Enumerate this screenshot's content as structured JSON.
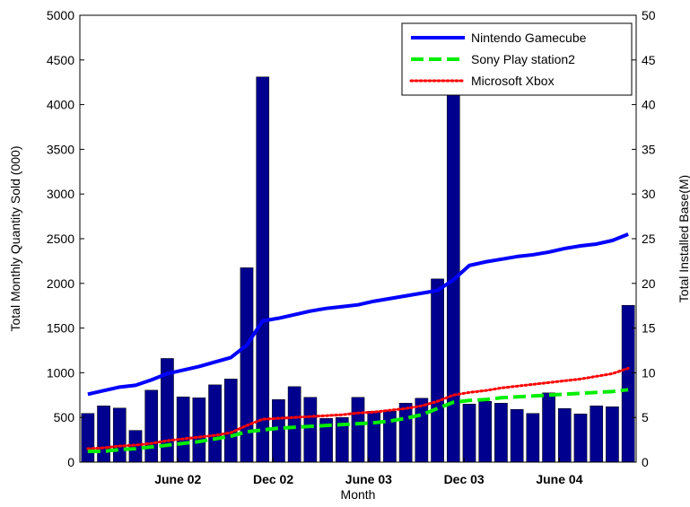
{
  "chart_data": {
    "type": "bar",
    "xlabel": "Month",
    "ylabel_left": "Total Monthly Quantity Sold (000)",
    "ylabel_right": "Total Installed Base(M)",
    "ylim_left": [
      0,
      5000
    ],
    "ylim_right": [
      0,
      50
    ],
    "yticks_left": [
      "0",
      "500",
      "1000",
      "1500",
      "2000",
      "2500",
      "3000",
      "3500",
      "4000",
      "4500",
      "5000"
    ],
    "yticks_right": [
      "0",
      "5",
      "10",
      "15",
      "20",
      "25",
      "30",
      "35",
      "40",
      "45",
      "50"
    ],
    "x_tick_labels": [
      {
        "month_index": 6,
        "label": "June 02"
      },
      {
        "month_index": 12,
        "label": "Dec  02"
      },
      {
        "month_index": 18,
        "label": "June 03"
      },
      {
        "month_index": 24,
        "label": "Dec  03"
      },
      {
        "month_index": 30,
        "label": "June 04"
      }
    ],
    "bar_color": "#00008f",
    "bars": [
      545,
      630,
      605,
      355,
      805,
      1160,
      730,
      720,
      865,
      930,
      2175,
      4310,
      700,
      845,
      725,
      490,
      500,
      725,
      570,
      570,
      660,
      715,
      2050,
      4150,
      650,
      680,
      660,
      590,
      545,
      775,
      600,
      540,
      630,
      620,
      1755
    ],
    "grid": false,
    "legend_position": "top-right",
    "series": [
      {
        "name": "Nintendo Gamecube",
        "color": "#0000ff",
        "style": "solid",
        "axis": "right",
        "values": [
          7.6,
          8.0,
          8.4,
          8.6,
          9.2,
          9.9,
          10.3,
          10.7,
          11.2,
          11.7,
          13.1,
          15.8,
          16.1,
          16.5,
          16.9,
          17.2,
          17.4,
          17.6,
          18.0,
          18.3,
          18.6,
          18.9,
          19.2,
          20.4,
          22.0,
          22.4,
          22.7,
          23.0,
          23.2,
          23.5,
          23.9,
          24.2,
          24.4,
          24.8,
          25.5
        ]
      },
      {
        "name": "Sony  Play station2",
        "color": "#00ee00",
        "style": "dashed",
        "axis": "right",
        "values": [
          1.2,
          1.2,
          1.4,
          1.5,
          1.7,
          1.9,
          2.1,
          2.3,
          2.6,
          2.9,
          3.4,
          3.6,
          3.8,
          3.9,
          4.0,
          4.1,
          4.2,
          4.3,
          4.4,
          4.6,
          4.9,
          5.3,
          6.0,
          6.7,
          6.9,
          7.0,
          7.2,
          7.3,
          7.4,
          7.5,
          7.6,
          7.7,
          7.8,
          7.9,
          8.1
        ]
      },
      {
        "name": "Microsoft Xbox",
        "color": "#ff0000",
        "style": "dotted",
        "axis": "right",
        "values": [
          1.5,
          1.6,
          1.8,
          1.9,
          2.1,
          2.4,
          2.6,
          2.8,
          3.0,
          3.3,
          4.1,
          4.8,
          4.9,
          5.0,
          5.1,
          5.2,
          5.3,
          5.5,
          5.6,
          5.8,
          6.0,
          6.3,
          6.8,
          7.5,
          7.8,
          8.0,
          8.3,
          8.5,
          8.7,
          8.9,
          9.1,
          9.3,
          9.6,
          9.9,
          10.5
        ]
      }
    ]
  }
}
